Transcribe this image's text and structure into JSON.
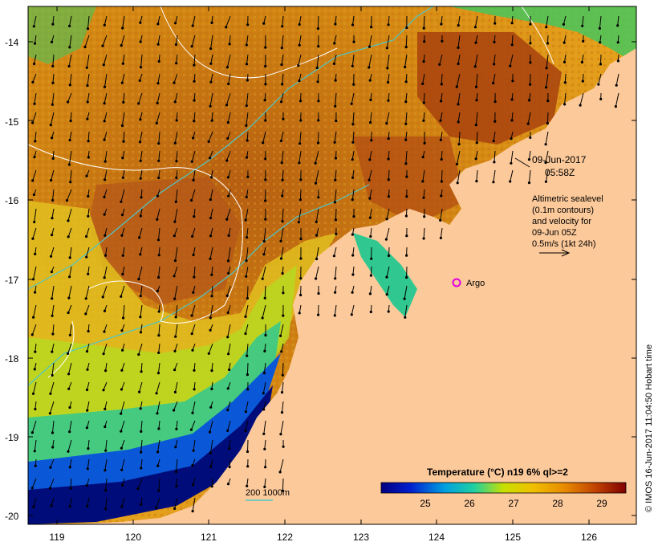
{
  "map": {
    "lat_ticks": [
      "-14",
      "-15",
      "-16",
      "-17",
      "-18",
      "-19",
      "-20"
    ],
    "lon_ticks": [
      "119",
      "120",
      "121",
      "122",
      "123",
      "124",
      "125",
      "126"
    ],
    "date_label": "09-Jun-2017",
    "time_label": "05:58Z",
    "info_lines": [
      "Altimetric sealevel",
      "(0.1m contours)",
      "and velocity for",
      "09-Jun 05Z",
      "0.5m/s (1kt 24h)"
    ],
    "argo_label": "Argo",
    "depth_legend": "200  1000m",
    "colorbar": {
      "title": "Temperature (°C) n19 6% ql>=2",
      "ticks": [
        "25",
        "26",
        "27",
        "28",
        "29"
      ]
    },
    "credit": "© IMOS 16-Jun-2017 11:04:50 Hobart time",
    "colors": {
      "land": "#fcc99a",
      "warm_dark": "#a0400e",
      "warm": "#cc7a10",
      "cool": "#1f3ea8",
      "isobath": "#4fc7c7",
      "argo": "#e000e0"
    }
  }
}
